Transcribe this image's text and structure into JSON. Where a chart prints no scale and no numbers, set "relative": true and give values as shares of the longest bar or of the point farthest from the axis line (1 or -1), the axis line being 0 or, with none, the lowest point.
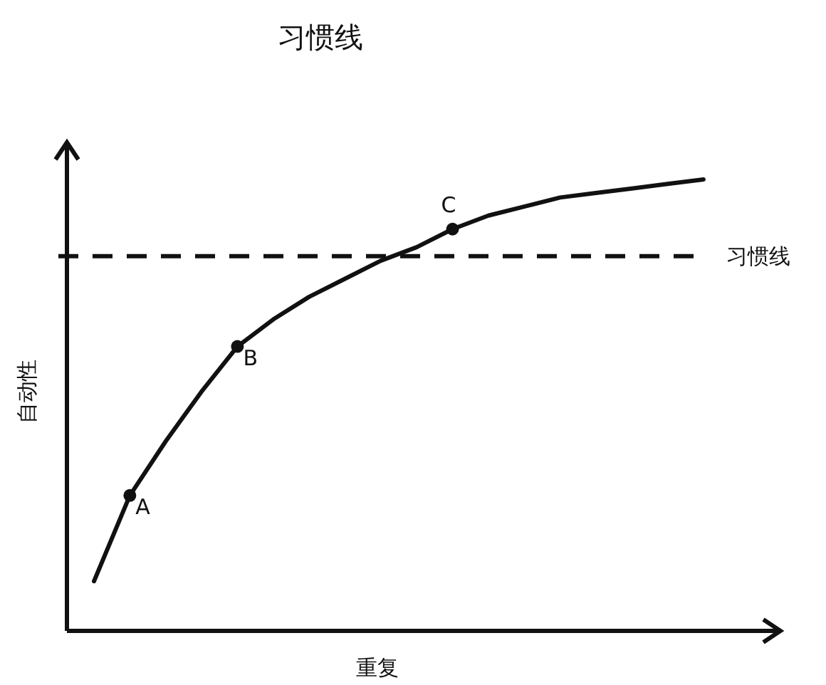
{
  "chart_data": {
    "type": "line",
    "title": "习惯线",
    "xlabel": "重复",
    "ylabel": "自动性",
    "relative": true,
    "categories": [
      null,
      null,
      null,
      null,
      null,
      null,
      null,
      null,
      null,
      null,
      null,
      null,
      null,
      null,
      null,
      null,
      null,
      null
    ],
    "series": [
      {
        "color": "#111111",
        "values": [
          0.11,
          0.3,
          0.42,
          0.53,
          0.63,
          0.69,
          0.74,
          0.78,
          0.82,
          0.85,
          0.89,
          0.92,
          0.94,
          0.96,
          0.97,
          0.98,
          0.99,
          1
        ]
      }
    ],
    "ref_lines": [
      {
        "axis": "y",
        "value": 0.83,
        "label": "习惯线",
        "line_style": "dashed",
        "color": "#111111"
      }
    ],
    "annotations": [
      {
        "text": "A",
        "y": 0.3
      },
      {
        "text": "B",
        "y": 0.63
      },
      {
        "text": "C",
        "y": 0.89
      }
    ]
  }
}
